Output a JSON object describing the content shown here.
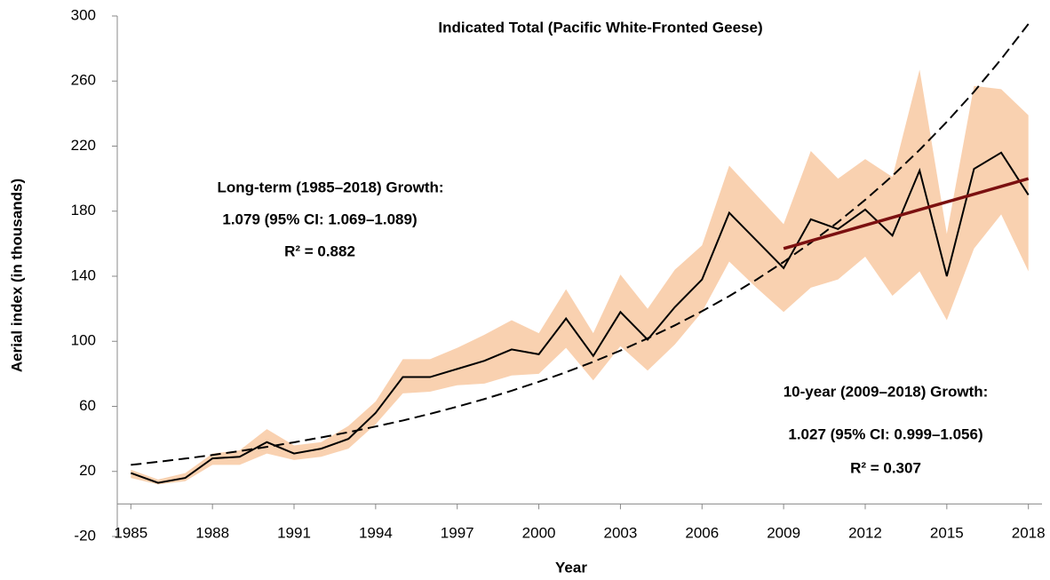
{
  "chart_data": {
    "type": "line",
    "title": "Indicated Total  (Pacific White-Fronted Geese)",
    "xlabel": "Year",
    "ylabel": "Aerial index (in thousands)",
    "x": [
      1985,
      1986,
      1987,
      1988,
      1989,
      1990,
      1991,
      1992,
      1993,
      1994,
      1995,
      1996,
      1997,
      1998,
      1999,
      2000,
      2001,
      2002,
      2003,
      2004,
      2005,
      2006,
      2007,
      2008,
      2009,
      2010,
      2011,
      2012,
      2013,
      2014,
      2015,
      2016,
      2017,
      2018
    ],
    "values": [
      19,
      13,
      16,
      28,
      29,
      38,
      31,
      34,
      40,
      56,
      78,
      78,
      83,
      88,
      95,
      92,
      114,
      91,
      118,
      101,
      121,
      138,
      179,
      162,
      145,
      175,
      169,
      181,
      165,
      205,
      140,
      206,
      216,
      190
    ],
    "ci_lower": [
      16,
      12,
      14,
      24,
      24,
      31,
      27,
      29,
      34,
      49,
      68,
      69,
      73,
      74,
      79,
      80,
      96,
      76,
      97,
      82,
      98,
      118,
      149,
      133,
      118,
      133,
      138,
      152,
      128,
      143,
      113,
      157,
      178,
      143
    ],
    "ci_upper": [
      21,
      15,
      19,
      31,
      33,
      46,
      36,
      38,
      48,
      63,
      89,
      89,
      96,
      104,
      113,
      105,
      132,
      105,
      141,
      120,
      144,
      159,
      208,
      190,
      172,
      217,
      200,
      212,
      201,
      267,
      166,
      257,
      255,
      239
    ],
    "trend": [
      24.0,
      25.9,
      27.9,
      30.1,
      32.5,
      35.1,
      37.9,
      40.9,
      44.1,
      47.6,
      51.3,
      55.4,
      59.8,
      64.5,
      69.6,
      75.1,
      81.0,
      87.4,
      94.3,
      101.8,
      109.8,
      118.5,
      127.8,
      137.9,
      148.8,
      160.6,
      173.3,
      187.0,
      201.7,
      217.7,
      234.9,
      253.4,
      273.5,
      295.1
    ],
    "trend_10yr": {
      "x": [
        2009,
        2018
      ],
      "values": [
        157,
        200
      ],
      "color": "#7b1010"
    },
    "color": "#000000",
    "band_color": "#f9d1b0",
    "trend_color": "#000000",
    "xlim": [
      1984.5,
      2018.5
    ],
    "ylim": [
      -20,
      300
    ],
    "xticks": [
      1985,
      1988,
      1991,
      1994,
      1997,
      2000,
      2003,
      2006,
      2009,
      2012,
      2015,
      2018
    ],
    "yticks": [
      -20,
      20,
      60,
      100,
      140,
      180,
      220,
      260,
      300
    ],
    "annotations": [
      [
        "Long-term (1985–2018) Growth:",
        "1.079  (95% CI: 1.069–1.089)",
        "R² = 0.882"
      ],
      [
        "10-year (2009–2018) Growth:",
        "1.027  (95% CI: 0.999–1.056)",
        "R² = 0.307"
      ]
    ]
  }
}
